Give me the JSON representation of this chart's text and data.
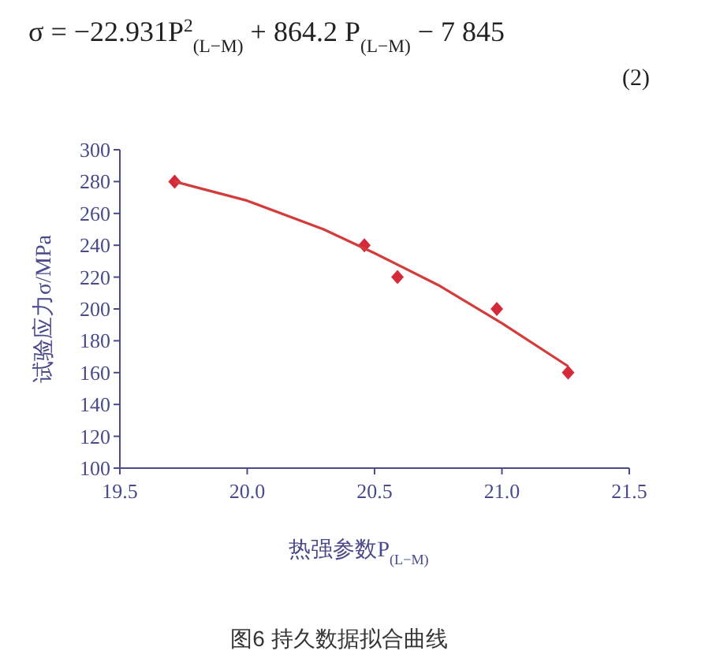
{
  "chart_data": {
    "type": "scatter",
    "xlabel": "热强参数P$_{(L−M)}$",
    "ylabel": "试验应力σ/MPa",
    "annotations": [
      "σ = −22.931P$^{2}$$_{(L−M)}$ + 864.2 P$_{(L−M)}$ − 7 845",
      "(2)",
      "图6 持久数据拟合曲线"
    ],
    "xlim": [
      19.5,
      21.5
    ],
    "xticks": [
      19.5,
      {
        "value": 20,
        "label": "20.0"
      },
      20.5,
      {
        "value": 21,
        "label": "21.0"
      },
      21.5
    ],
    "ylim": [
      100,
      300
    ],
    "yticks": [
      100,
      120,
      140,
      160,
      180,
      200,
      220,
      240,
      260,
      280,
      300
    ],
    "grid": false,
    "series": [
      {
        "marker": "diamond",
        "color": "#d42a3a",
        "x": [
          19.715,
          20.46,
          20.59,
          20.98,
          21.26
        ],
        "values": [
          280,
          240,
          220,
          200,
          160
        ]
      },
      {
        "type": "line",
        "line_style": "solid",
        "color": "#d23c3c",
        "x": [
          19.715,
          20.0,
          20.3,
          20.5,
          20.75,
          21.0,
          21.26
        ],
        "values": [
          280,
          268,
          250,
          235,
          215,
          191,
          164
        ]
      }
    ]
  }
}
